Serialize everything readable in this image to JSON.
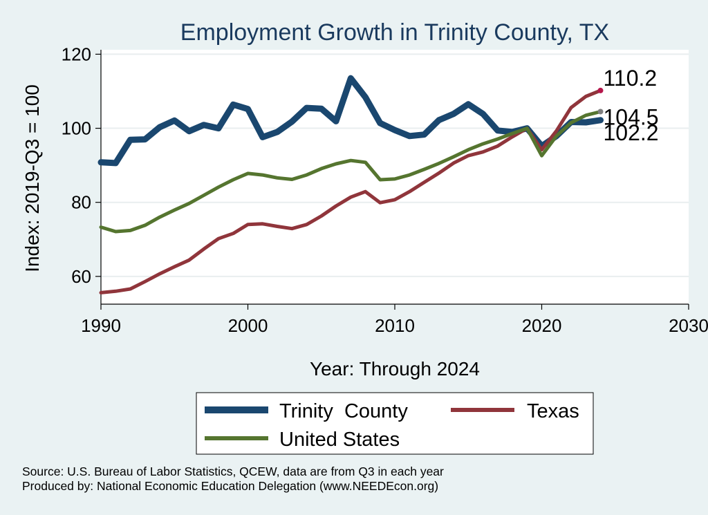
{
  "chart_data": {
    "type": "line",
    "title": "Employment Growth in Trinity County, TX",
    "xlabel": "Year: Through 2024",
    "ylabel": "Index: 2019-Q3 = 100",
    "xlim": [
      1990,
      2030
    ],
    "ylim": [
      52.5,
      121.2
    ],
    "xticks": [
      1990,
      2000,
      2010,
      2020,
      2030
    ],
    "yticks": [
      60,
      80,
      100,
      120
    ],
    "x": [
      1990,
      1991,
      1992,
      1993,
      1994,
      1995,
      1996,
      1997,
      1998,
      1999,
      2000,
      2001,
      2002,
      2003,
      2004,
      2005,
      2006,
      2007,
      2008,
      2009,
      2010,
      2011,
      2012,
      2013,
      2014,
      2015,
      2016,
      2017,
      2018,
      2019,
      2020,
      2021,
      2022,
      2023,
      2024
    ],
    "series": [
      {
        "name": "Trinity  County",
        "color": "#1a476f",
        "width": 9,
        "values": [
          90.8,
          90.6,
          96.9,
          97.0,
          100.3,
          102.1,
          99.2,
          100.9,
          100.0,
          106.4,
          105.2,
          97.6,
          99.0,
          101.8,
          105.5,
          105.3,
          101.9,
          113.5,
          108.4,
          101.4,
          99.5,
          97.9,
          98.3,
          102.2,
          103.9,
          106.5,
          103.9,
          99.4,
          99.0,
          100.0,
          95.2,
          97.9,
          101.7,
          101.6,
          102.2
        ]
      },
      {
        "name": "Texas",
        "color": "#90353b",
        "width": 5,
        "values": [
          55.6,
          56.0,
          56.6,
          58.6,
          60.7,
          62.6,
          64.4,
          67.4,
          70.2,
          71.6,
          74.0,
          74.2,
          73.5,
          72.9,
          74.0,
          76.3,
          79.0,
          81.4,
          82.9,
          79.9,
          80.7,
          82.9,
          85.4,
          87.9,
          90.6,
          92.6,
          93.6,
          95.2,
          97.7,
          100.0,
          94.2,
          99.3,
          105.6,
          108.6,
          110.2
        ]
      },
      {
        "name": "United States",
        "color": "#55752f",
        "width": 5,
        "values": [
          73.3,
          72.1,
          72.4,
          73.8,
          76.0,
          77.9,
          79.7,
          81.9,
          84.1,
          86.1,
          87.8,
          87.4,
          86.6,
          86.2,
          87.4,
          89.1,
          90.4,
          91.3,
          90.8,
          86.1,
          86.3,
          87.4,
          88.9,
          90.5,
          92.3,
          94.2,
          95.8,
          97.1,
          98.6,
          100.0,
          92.6,
          97.9,
          101.5,
          103.5,
          104.5
        ]
      }
    ],
    "end_labels": [
      {
        "series": "Texas",
        "text": "110.2",
        "color": "#b5164b"
      },
      {
        "series": "United States",
        "text": "104.5",
        "color": "#7f7f7f"
      },
      {
        "series": "Trinity  County",
        "text": "102.2",
        "color": "#1a476f"
      }
    ],
    "legend": {
      "position": "bottom",
      "entries": [
        "Trinity  County",
        "Texas",
        "United States"
      ]
    },
    "notes": [
      "Source: U.S. Bureau of Labor Statistics, QCEW, data are from Q3 in each year",
      "Produced by: National Economic Education Delegation (www.NEEDEcon.org)"
    ]
  }
}
